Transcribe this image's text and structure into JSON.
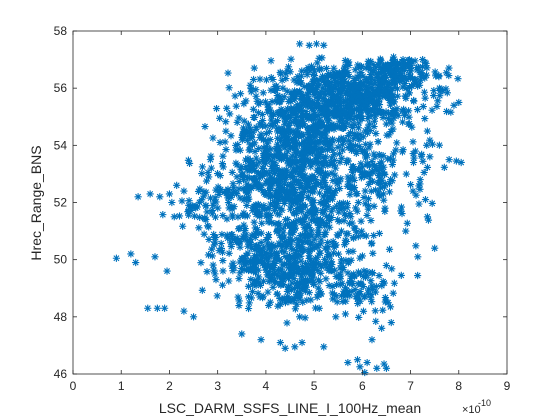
{
  "chart_data": {
    "type": "scatter",
    "title": "",
    "xlabel": "LSC_DARM_SSFS_LINE_I_100Hz_mean",
    "ylabel": "Hrec_Range_BNS",
    "x_exponent_label": "×10",
    "x_exponent_power": "-10",
    "xlim": [
      0,
      9
    ],
    "ylim": [
      46,
      58
    ],
    "xticks": [
      "0",
      "1",
      "2",
      "3",
      "4",
      "5",
      "6",
      "7",
      "8",
      "9"
    ],
    "yticks": [
      "46",
      "48",
      "50",
      "52",
      "54",
      "56",
      "58"
    ],
    "x_scale_factor": 1e-10,
    "marker": "asterisk",
    "marker_color": "#0072BD",
    "grid": false,
    "legend": "none",
    "clusters": [
      {
        "cx": 5.8,
        "cy": 55.8,
        "sx": 0.75,
        "sy": 0.55,
        "n": 520
      },
      {
        "cx": 4.9,
        "cy": 54.6,
        "sx": 0.8,
        "sy": 0.9,
        "n": 520
      },
      {
        "cx": 4.2,
        "cy": 52.6,
        "sx": 0.6,
        "sy": 1.0,
        "n": 420
      },
      {
        "cx": 5.0,
        "cy": 51.2,
        "sx": 0.55,
        "sy": 1.1,
        "n": 320
      },
      {
        "cx": 4.4,
        "cy": 49.5,
        "sx": 0.55,
        "sy": 0.6,
        "n": 230
      },
      {
        "cx": 3.6,
        "cy": 50.2,
        "sx": 0.45,
        "sy": 0.6,
        "n": 110
      },
      {
        "cx": 6.3,
        "cy": 53.0,
        "sx": 0.55,
        "sy": 0.9,
        "n": 160
      },
      {
        "cx": 5.9,
        "cy": 49.0,
        "sx": 0.45,
        "sy": 0.5,
        "n": 90
      },
      {
        "cx": 2.8,
        "cy": 51.9,
        "sx": 0.35,
        "sy": 0.45,
        "n": 60
      },
      {
        "cx": 6.7,
        "cy": 56.6,
        "sx": 0.4,
        "sy": 0.3,
        "n": 120
      }
    ],
    "outliers": [
      [
        0.9,
        50.05
      ],
      [
        1.2,
        50.2
      ],
      [
        1.3,
        49.9
      ],
      [
        1.7,
        50.1
      ],
      [
        1.95,
        49.6
      ],
      [
        1.55,
        48.3
      ],
      [
        1.75,
        48.3
      ],
      [
        1.9,
        48.3
      ],
      [
        2.3,
        48.2
      ],
      [
        2.5,
        48.0
      ],
      [
        1.35,
        52.2
      ],
      [
        1.6,
        52.3
      ],
      [
        1.8,
        52.2
      ],
      [
        2.0,
        52.3
      ],
      [
        2.05,
        52.0
      ],
      [
        2.15,
        52.6
      ],
      [
        2.3,
        52.4
      ],
      [
        2.4,
        51.9
      ],
      [
        2.1,
        51.5
      ],
      [
        3.5,
        47.4
      ],
      [
        3.9,
        47.2
      ],
      [
        4.3,
        47.1
      ],
      [
        4.4,
        46.9
      ],
      [
        4.6,
        46.95
      ],
      [
        4.7,
        48.0
      ],
      [
        4.75,
        47.1
      ],
      [
        5.2,
        46.95
      ],
      [
        5.45,
        48.0
      ],
      [
        5.65,
        48.1
      ],
      [
        5.7,
        46.4
      ],
      [
        5.9,
        46.5
      ],
      [
        6.1,
        46.4
      ],
      [
        6.3,
        46.2
      ],
      [
        6.5,
        46.2
      ],
      [
        6.05,
        46.05
      ],
      [
        5.95,
        46.25
      ],
      [
        6.45,
        46.35
      ],
      [
        6.4,
        47.6
      ],
      [
        6.6,
        47.8
      ],
      [
        6.2,
        47.2
      ],
      [
        4.7,
        57.55
      ],
      [
        4.9,
        57.5
      ],
      [
        5.05,
        57.55
      ],
      [
        5.2,
        57.5
      ],
      [
        3.25,
        55.1
      ],
      [
        3.55,
        54.85
      ],
      [
        3.05,
        54.1
      ],
      [
        2.85,
        53.5
      ],
      [
        2.8,
        53.05
      ],
      [
        7.6,
        56.0
      ],
      [
        7.9,
        55.4
      ],
      [
        8.05,
        53.4
      ],
      [
        7.95,
        53.45
      ],
      [
        7.8,
        53.5
      ],
      [
        7.1,
        53.8
      ],
      [
        7.4,
        53.6
      ],
      [
        7.2,
        52.8
      ],
      [
        7.05,
        52.4
      ],
      [
        7.35,
        51.5
      ],
      [
        7.5,
        50.4
      ],
      [
        6.9,
        51.0
      ],
      [
        7.15,
        50.1
      ],
      [
        8.0,
        55.5
      ],
      [
        7.25,
        57.0
      ]
    ]
  }
}
